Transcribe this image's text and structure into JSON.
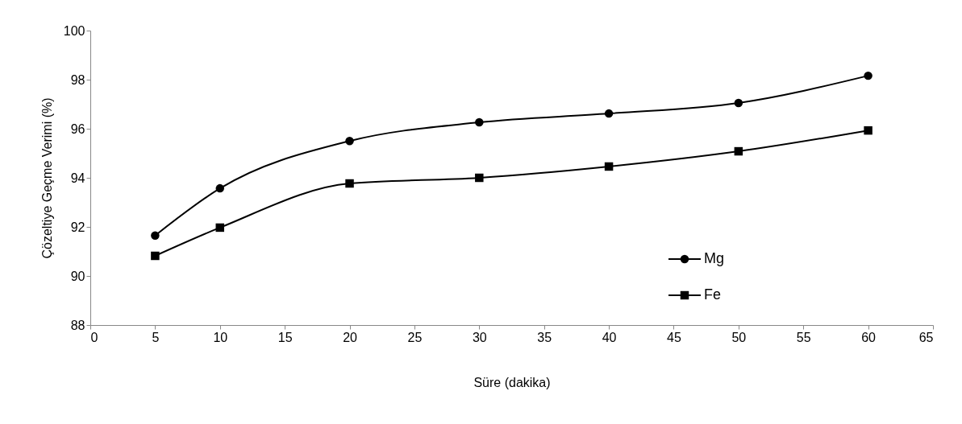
{
  "chart_data": {
    "type": "line",
    "xlabel": "Süre (dakika)",
    "ylabel": "Çözeltiye Geçme Verimi (%)",
    "x": [
      5,
      10,
      20,
      30,
      40,
      50,
      60
    ],
    "series": [
      {
        "name": "Mg",
        "color": "#000000",
        "marker": "circle",
        "values": [
          91.65,
          93.57,
          95.5,
          96.26,
          96.62,
          97.05,
          98.16
        ]
      },
      {
        "name": "Fe",
        "color": "#000000",
        "marker": "square",
        "values": [
          90.82,
          91.97,
          93.77,
          94.0,
          94.46,
          95.08,
          95.93
        ]
      }
    ],
    "xlim": [
      0,
      65
    ],
    "xticks": [
      0,
      5,
      10,
      15,
      20,
      25,
      30,
      35,
      40,
      45,
      50,
      55,
      60,
      65
    ],
    "ylim": [
      88,
      100
    ],
    "yticks": [
      88,
      90,
      92,
      94,
      96,
      98,
      100
    ],
    "grid": false,
    "legend": "right",
    "line_style": "solid"
  }
}
